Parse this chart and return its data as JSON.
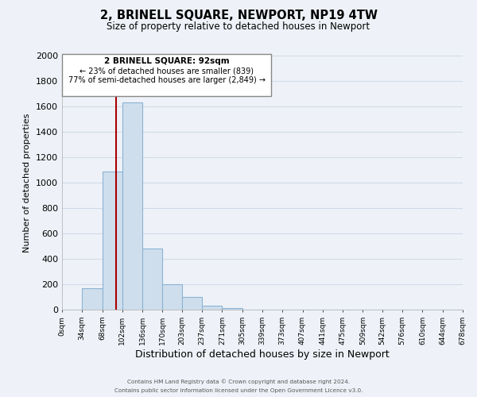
{
  "title": "2, BRINELL SQUARE, NEWPORT, NP19 4TW",
  "subtitle": "Size of property relative to detached houses in Newport",
  "xlabel": "Distribution of detached houses by size in Newport",
  "ylabel": "Number of detached properties",
  "bin_edges": [
    0,
    34,
    68,
    102,
    136,
    170,
    203,
    237,
    271,
    305,
    339,
    373,
    407,
    441,
    475,
    509,
    542,
    576,
    610,
    644,
    678
  ],
  "bar_heights": [
    0,
    170,
    1090,
    1630,
    480,
    200,
    100,
    30,
    15,
    0,
    0,
    0,
    0,
    0,
    0,
    0,
    0,
    0,
    0,
    0
  ],
  "bar_color": "#cfdeed",
  "bar_edge_color": "#8ab4d4",
  "grid_color": "#d0dae8",
  "bg_color": "#eef2f8",
  "vline_x": 92,
  "vline_color": "#aa0000",
  "ylim": [
    0,
    2000
  ],
  "annotation_title": "2 BRINELL SQUARE: 92sqm",
  "annotation_line1": "← 23% of detached houses are smaller (839)",
  "annotation_line2": "77% of semi-detached houses are larger (2,849) →",
  "annotation_box_color": "#ffffff",
  "annotation_box_edge": "#888888",
  "footer1": "Contains HM Land Registry data © Crown copyright and database right 2024.",
  "footer2": "Contains public sector information licensed under the Open Government Licence v3.0.",
  "tick_labels": [
    "0sqm",
    "34sqm",
    "68sqm",
    "102sqm",
    "136sqm",
    "170sqm",
    "203sqm",
    "237sqm",
    "271sqm",
    "305sqm",
    "339sqm",
    "373sqm",
    "407sqm",
    "441sqm",
    "475sqm",
    "509sqm",
    "542sqm",
    "576sqm",
    "610sqm",
    "644sqm",
    "678sqm"
  ]
}
